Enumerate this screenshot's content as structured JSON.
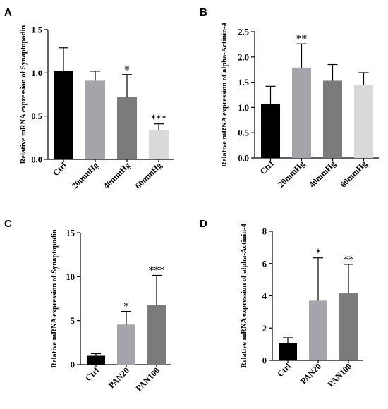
{
  "chart_data": [
    {
      "panel": "A",
      "type": "bar",
      "ylabel": "Relative mRNA expression of Synaptopodin",
      "categories": [
        "Ctrl",
        "20mmHg",
        "40mmHg",
        "60mmHg"
      ],
      "values": [
        1.02,
        0.91,
        0.72,
        0.34
      ],
      "errors": [
        0.27,
        0.11,
        0.26,
        0.07
      ],
      "significance": [
        "",
        "",
        "*",
        "***"
      ],
      "colors": [
        "#000000",
        "#a4a4aa",
        "#7b7b7b",
        "#d9d9d9"
      ],
      "ylim": [
        0,
        1.5
      ],
      "yticks": [
        "0.0",
        "0.5",
        "1.0",
        "1.5"
      ],
      "grid": false
    },
    {
      "panel": "B",
      "type": "bar",
      "ylabel": "Relative mRNA expression of alpha-Actinin-4",
      "categories": [
        "Ctrl",
        "20mmHg",
        "40mmHg",
        "60mmHg"
      ],
      "values": [
        1.07,
        1.79,
        1.53,
        1.44
      ],
      "errors": [
        0.35,
        0.47,
        0.32,
        0.25
      ],
      "significance": [
        "",
        "**",
        "",
        ""
      ],
      "colors": [
        "#000000",
        "#a4a4aa",
        "#7b7b7b",
        "#d9d9d9"
      ],
      "ylim": [
        0,
        2.5
      ],
      "yticks": [
        "0.0",
        "0.5",
        "1.0",
        "1.5",
        "2.0",
        "2.5"
      ],
      "grid": false
    },
    {
      "panel": "C",
      "type": "bar",
      "ylabel": "Relative mRNA expression of Synaptopodin",
      "categories": [
        "Ctrl",
        "PAN20",
        "PAN100"
      ],
      "values": [
        1.0,
        4.55,
        6.8
      ],
      "errors": [
        0.25,
        1.5,
        3.35
      ],
      "significance": [
        "",
        "*",
        "***"
      ],
      "colors": [
        "#000000",
        "#a4a4aa",
        "#7b7b7b"
      ],
      "ylim": [
        0,
        15
      ],
      "yticks": [
        "0",
        "5",
        "10",
        "15"
      ],
      "grid": false
    },
    {
      "panel": "D",
      "type": "bar",
      "ylabel": "Relative mRNA expression of alpha-Actinin-4",
      "categories": [
        "Ctrl",
        "PAN20",
        "PAN100"
      ],
      "values": [
        1.05,
        3.7,
        4.15
      ],
      "errors": [
        0.35,
        2.65,
        1.8
      ],
      "significance": [
        "",
        "*",
        "**"
      ],
      "colors": [
        "#000000",
        "#a4a4aa",
        "#7b7b7b"
      ],
      "ylim": [
        0,
        8
      ],
      "yticks": [
        "0",
        "2",
        "4",
        "6",
        "8"
      ],
      "grid": false
    }
  ]
}
